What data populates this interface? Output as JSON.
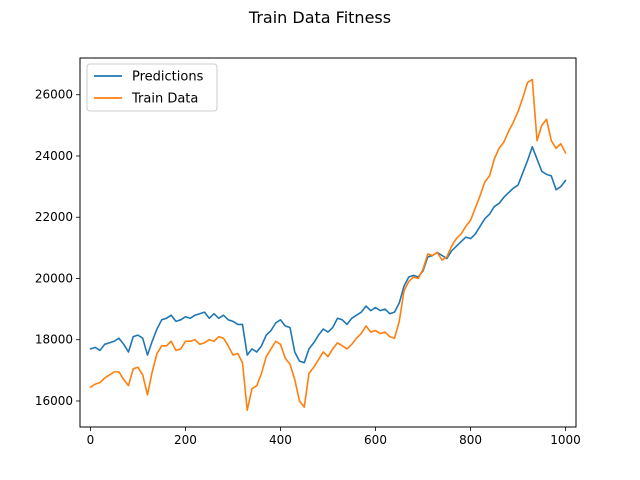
{
  "chart_data": {
    "type": "line",
    "title": "Train Data Fitness",
    "xlabel": "",
    "ylabel": "",
    "xlim": [
      -22,
      1022
    ],
    "ylim": [
      15150,
      27200
    ],
    "xticks": [
      0,
      200,
      400,
      600,
      800,
      1000
    ],
    "yticks": [
      16000,
      18000,
      20000,
      22000,
      24000,
      26000
    ],
    "grid": false,
    "legend_position": "top-left",
    "series": [
      {
        "name": "Predictions",
        "color": "#1f77b4",
        "x": [
          0,
          10,
          20,
          30,
          40,
          50,
          60,
          70,
          80,
          90,
          100,
          110,
          120,
          130,
          140,
          150,
          160,
          170,
          180,
          190,
          200,
          210,
          220,
          230,
          240,
          250,
          260,
          270,
          280,
          290,
          300,
          310,
          320,
          330,
          340,
          350,
          360,
          370,
          380,
          390,
          400,
          410,
          420,
          430,
          440,
          450,
          460,
          470,
          480,
          490,
          500,
          510,
          520,
          530,
          540,
          550,
          560,
          570,
          580,
          590,
          600,
          610,
          620,
          630,
          640,
          650,
          660,
          670,
          680,
          690,
          700,
          710,
          720,
          730,
          740,
          750,
          760,
          770,
          780,
          790,
          800,
          810,
          820,
          830,
          840,
          850,
          860,
          870,
          880,
          890,
          900,
          910,
          920,
          930,
          940,
          950,
          960,
          970,
          980,
          990,
          1000
        ],
        "y": [
          17700,
          17750,
          17650,
          17850,
          17900,
          17950,
          18050,
          17850,
          17600,
          18100,
          18150,
          18050,
          17500,
          17950,
          18350,
          18650,
          18700,
          18800,
          18600,
          18650,
          18750,
          18700,
          18800,
          18850,
          18900,
          18700,
          18850,
          18700,
          18800,
          18650,
          18600,
          18500,
          18500,
          17500,
          17700,
          17600,
          17800,
          18150,
          18300,
          18550,
          18650,
          18450,
          18400,
          17600,
          17300,
          17250,
          17700,
          17900,
          18150,
          18350,
          18250,
          18400,
          18700,
          18650,
          18500,
          18700,
          18800,
          18900,
          19100,
          18950,
          19050,
          18950,
          19000,
          18850,
          18900,
          19200,
          19750,
          20050,
          20100,
          20050,
          20250,
          20700,
          20750,
          20850,
          20750,
          20650,
          20900,
          21050,
          21200,
          21350,
          21300,
          21450,
          21700,
          21950,
          22100,
          22350,
          22450,
          22650,
          22800,
          22950,
          23050,
          23450,
          23850,
          24300,
          23900,
          23500,
          23400,
          23350,
          22900,
          23000,
          23200
        ]
      },
      {
        "name": "Train Data",
        "color": "#ff7f0e",
        "x": [
          0,
          10,
          20,
          30,
          40,
          50,
          60,
          70,
          80,
          90,
          100,
          110,
          120,
          130,
          140,
          150,
          160,
          170,
          180,
          190,
          200,
          210,
          220,
          230,
          240,
          250,
          260,
          270,
          280,
          290,
          300,
          310,
          320,
          330,
          340,
          350,
          360,
          370,
          380,
          390,
          400,
          410,
          420,
          430,
          440,
          450,
          460,
          470,
          480,
          490,
          500,
          510,
          520,
          530,
          540,
          550,
          560,
          570,
          580,
          590,
          600,
          610,
          620,
          630,
          640,
          650,
          660,
          670,
          680,
          690,
          700,
          710,
          720,
          730,
          740,
          750,
          760,
          770,
          780,
          790,
          800,
          810,
          820,
          830,
          840,
          850,
          860,
          870,
          880,
          890,
          900,
          910,
          920,
          930,
          940,
          950,
          960,
          970,
          980,
          990,
          1000
        ],
        "y": [
          16450,
          16550,
          16600,
          16750,
          16850,
          16950,
          16950,
          16700,
          16500,
          17050,
          17100,
          16850,
          16200,
          16950,
          17550,
          17800,
          17800,
          17950,
          17650,
          17700,
          17950,
          17950,
          18000,
          17850,
          17900,
          18000,
          17950,
          18100,
          18050,
          17800,
          17500,
          17550,
          17250,
          15700,
          16400,
          16500,
          16900,
          17450,
          17700,
          17950,
          17850,
          17400,
          17200,
          16700,
          16000,
          15800,
          16900,
          17100,
          17350,
          17600,
          17450,
          17700,
          17900,
          17800,
          17700,
          17850,
          18050,
          18200,
          18450,
          18250,
          18300,
          18200,
          18250,
          18100,
          18050,
          18600,
          19600,
          19900,
          20050,
          20000,
          20300,
          20800,
          20750,
          20850,
          20600,
          20700,
          21050,
          21300,
          21450,
          21700,
          21900,
          22300,
          22700,
          23150,
          23350,
          23900,
          24250,
          24450,
          24800,
          25100,
          25450,
          25900,
          26400,
          26500,
          24500,
          25000,
          25200,
          24500,
          24250,
          24400,
          24100
        ]
      }
    ]
  }
}
